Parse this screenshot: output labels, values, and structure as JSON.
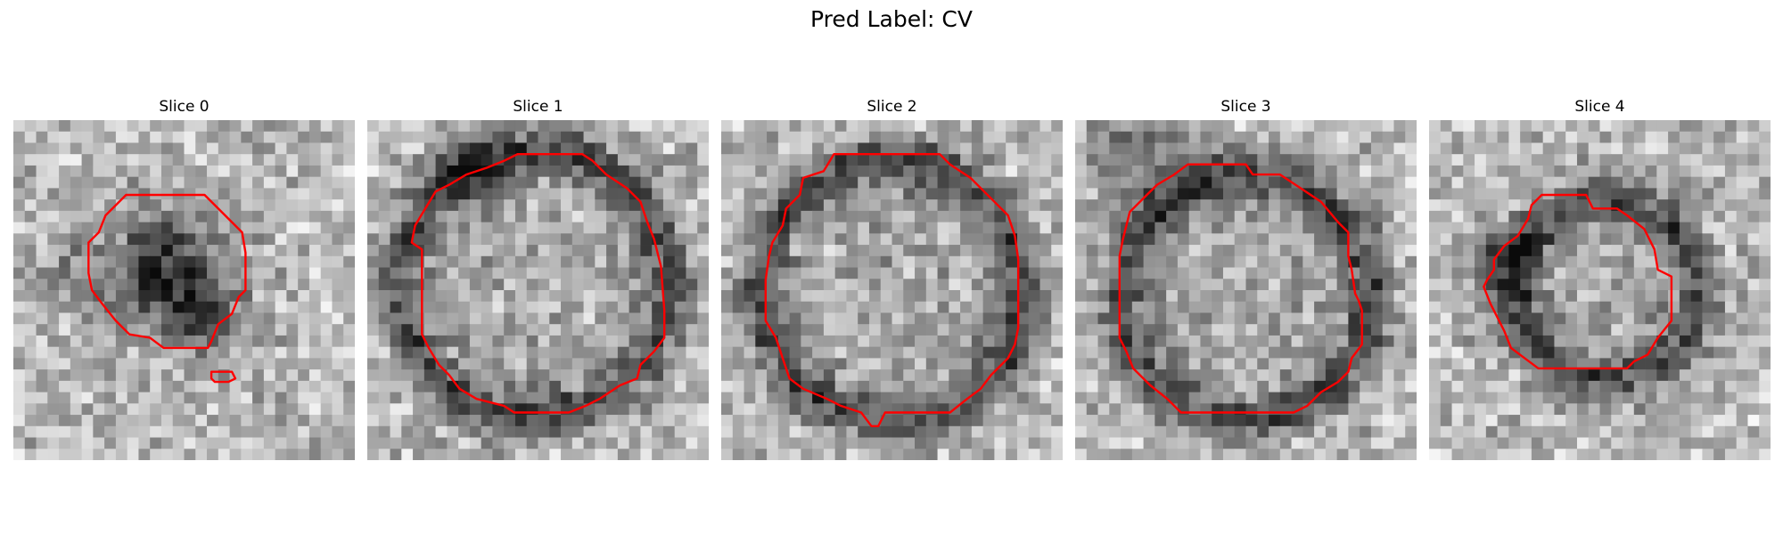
{
  "figure": {
    "title": "Pred Label: CV"
  },
  "panels": [
    {
      "title": "Slice 0"
    },
    {
      "title": "Slice 1"
    },
    {
      "title": "Slice 2"
    },
    {
      "title": "Slice 3"
    },
    {
      "title": "Slice 4"
    }
  ],
  "colors": {
    "contour": "#ff0000",
    "background": "#ffffff"
  }
}
